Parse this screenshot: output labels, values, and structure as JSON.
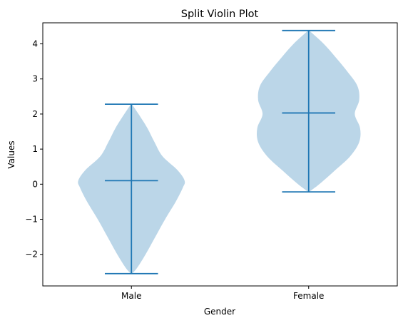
{
  "chart_data": {
    "type": "violin",
    "title": "Split Violin Plot",
    "xlabel": "Gender",
    "ylabel": "Values",
    "categories": [
      "Male",
      "Female"
    ],
    "ylim": [
      -2.9,
      4.6
    ],
    "yticks": [
      -2,
      -1,
      0,
      1,
      2,
      3,
      4
    ],
    "ytick_labels": [
      "−2",
      "−1",
      "0",
      "1",
      "2",
      "3",
      "4"
    ],
    "grid": false,
    "violins": [
      {
        "category": "Male",
        "min": -2.55,
        "median": 0.1,
        "max": 2.28,
        "density_profile": [
          {
            "y": -2.55,
            "hw": 0.005
          },
          {
            "y": -2.4,
            "hw": 0.06
          },
          {
            "y": -2.0,
            "hw": 0.16
          },
          {
            "y": -1.5,
            "hw": 0.27
          },
          {
            "y": -1.0,
            "hw": 0.38
          },
          {
            "y": -0.5,
            "hw": 0.5
          },
          {
            "y": -0.1,
            "hw": 0.58
          },
          {
            "y": 0.1,
            "hw": 0.6
          },
          {
            "y": 0.4,
            "hw": 0.52
          },
          {
            "y": 0.8,
            "hw": 0.35
          },
          {
            "y": 1.2,
            "hw": 0.26
          },
          {
            "y": 1.6,
            "hw": 0.18
          },
          {
            "y": 2.0,
            "hw": 0.08
          },
          {
            "y": 2.28,
            "hw": 0.005
          }
        ]
      },
      {
        "category": "Female",
        "min": -0.22,
        "median": 2.03,
        "max": 4.38,
        "density_profile": [
          {
            "y": -0.22,
            "hw": 0.005
          },
          {
            "y": 0.0,
            "hw": 0.12
          },
          {
            "y": 0.4,
            "hw": 0.3
          },
          {
            "y": 0.8,
            "hw": 0.47
          },
          {
            "y": 1.2,
            "hw": 0.57
          },
          {
            "y": 1.6,
            "hw": 0.58
          },
          {
            "y": 2.0,
            "hw": 0.52
          },
          {
            "y": 2.4,
            "hw": 0.57
          },
          {
            "y": 2.8,
            "hw": 0.55
          },
          {
            "y": 3.2,
            "hw": 0.44
          },
          {
            "y": 3.6,
            "hw": 0.31
          },
          {
            "y": 4.0,
            "hw": 0.17
          },
          {
            "y": 4.38,
            "hw": 0.005
          }
        ]
      }
    ],
    "colors": {
      "body_fill": "#1f77b4",
      "body_opacity": 0.3,
      "lines": "#1f77b4",
      "axes": "#000000"
    }
  }
}
